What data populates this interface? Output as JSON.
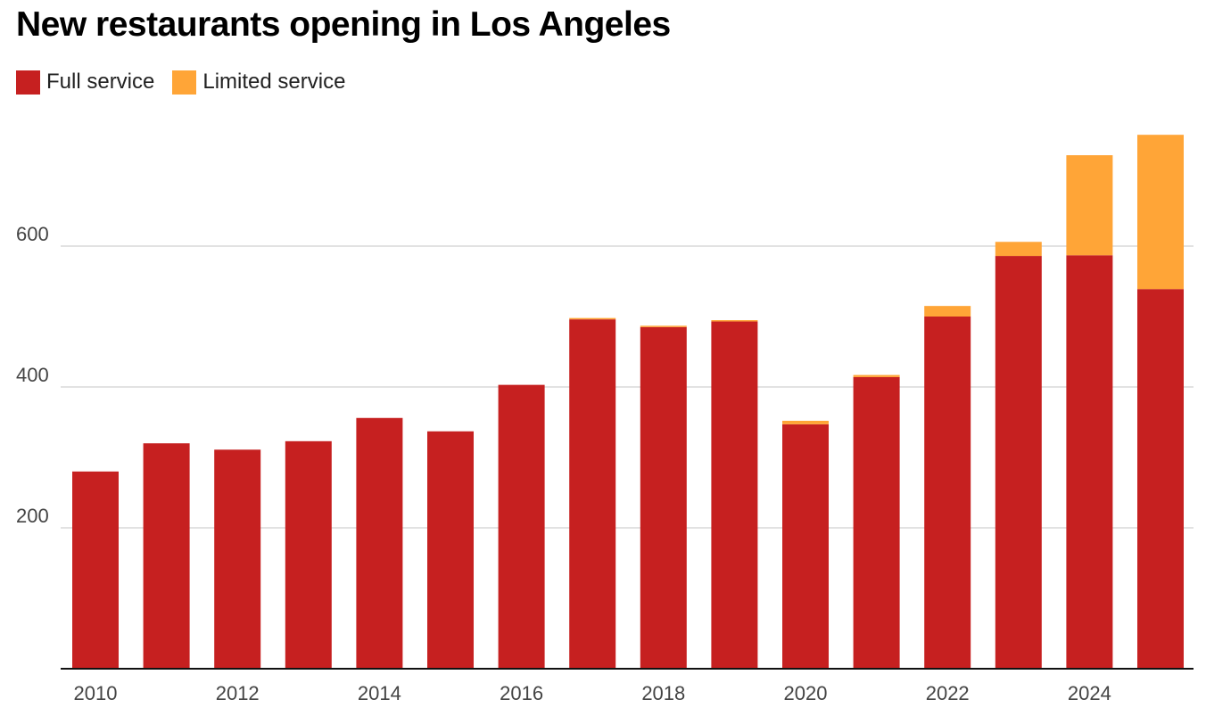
{
  "chart_data": {
    "type": "bar",
    "stacked": true,
    "title": "New restaurants opening in Los Angeles",
    "xlabel": "",
    "ylabel": "",
    "ylim": [
      0,
      760
    ],
    "yticks": [
      200,
      400,
      600
    ],
    "x_tick_labels": [
      "2010",
      "2012",
      "2014",
      "2016",
      "2018",
      "2020",
      "2022",
      "2024"
    ],
    "categories": [
      "2010",
      "2011",
      "2012",
      "2013",
      "2014",
      "2015",
      "2016",
      "2017",
      "2018",
      "2019",
      "2020",
      "2021",
      "2022",
      "2023",
      "2024",
      "2025"
    ],
    "series": [
      {
        "name": "Full service",
        "color": "#c62020",
        "values": [
          280,
          320,
          311,
          323,
          356,
          337,
          403,
          496,
          485,
          493,
          347,
          414,
          500,
          586,
          587,
          539
        ]
      },
      {
        "name": "Limited service",
        "color": "#ffa537",
        "values": [
          0,
          0,
          0,
          0,
          0,
          0,
          0,
          1,
          1,
          1,
          5,
          3,
          15,
          20,
          142,
          219
        ]
      }
    ],
    "legend_position": "top-left",
    "grid": true
  },
  "legend": {
    "full_label": "Full service",
    "limited_label": "Limited service"
  }
}
